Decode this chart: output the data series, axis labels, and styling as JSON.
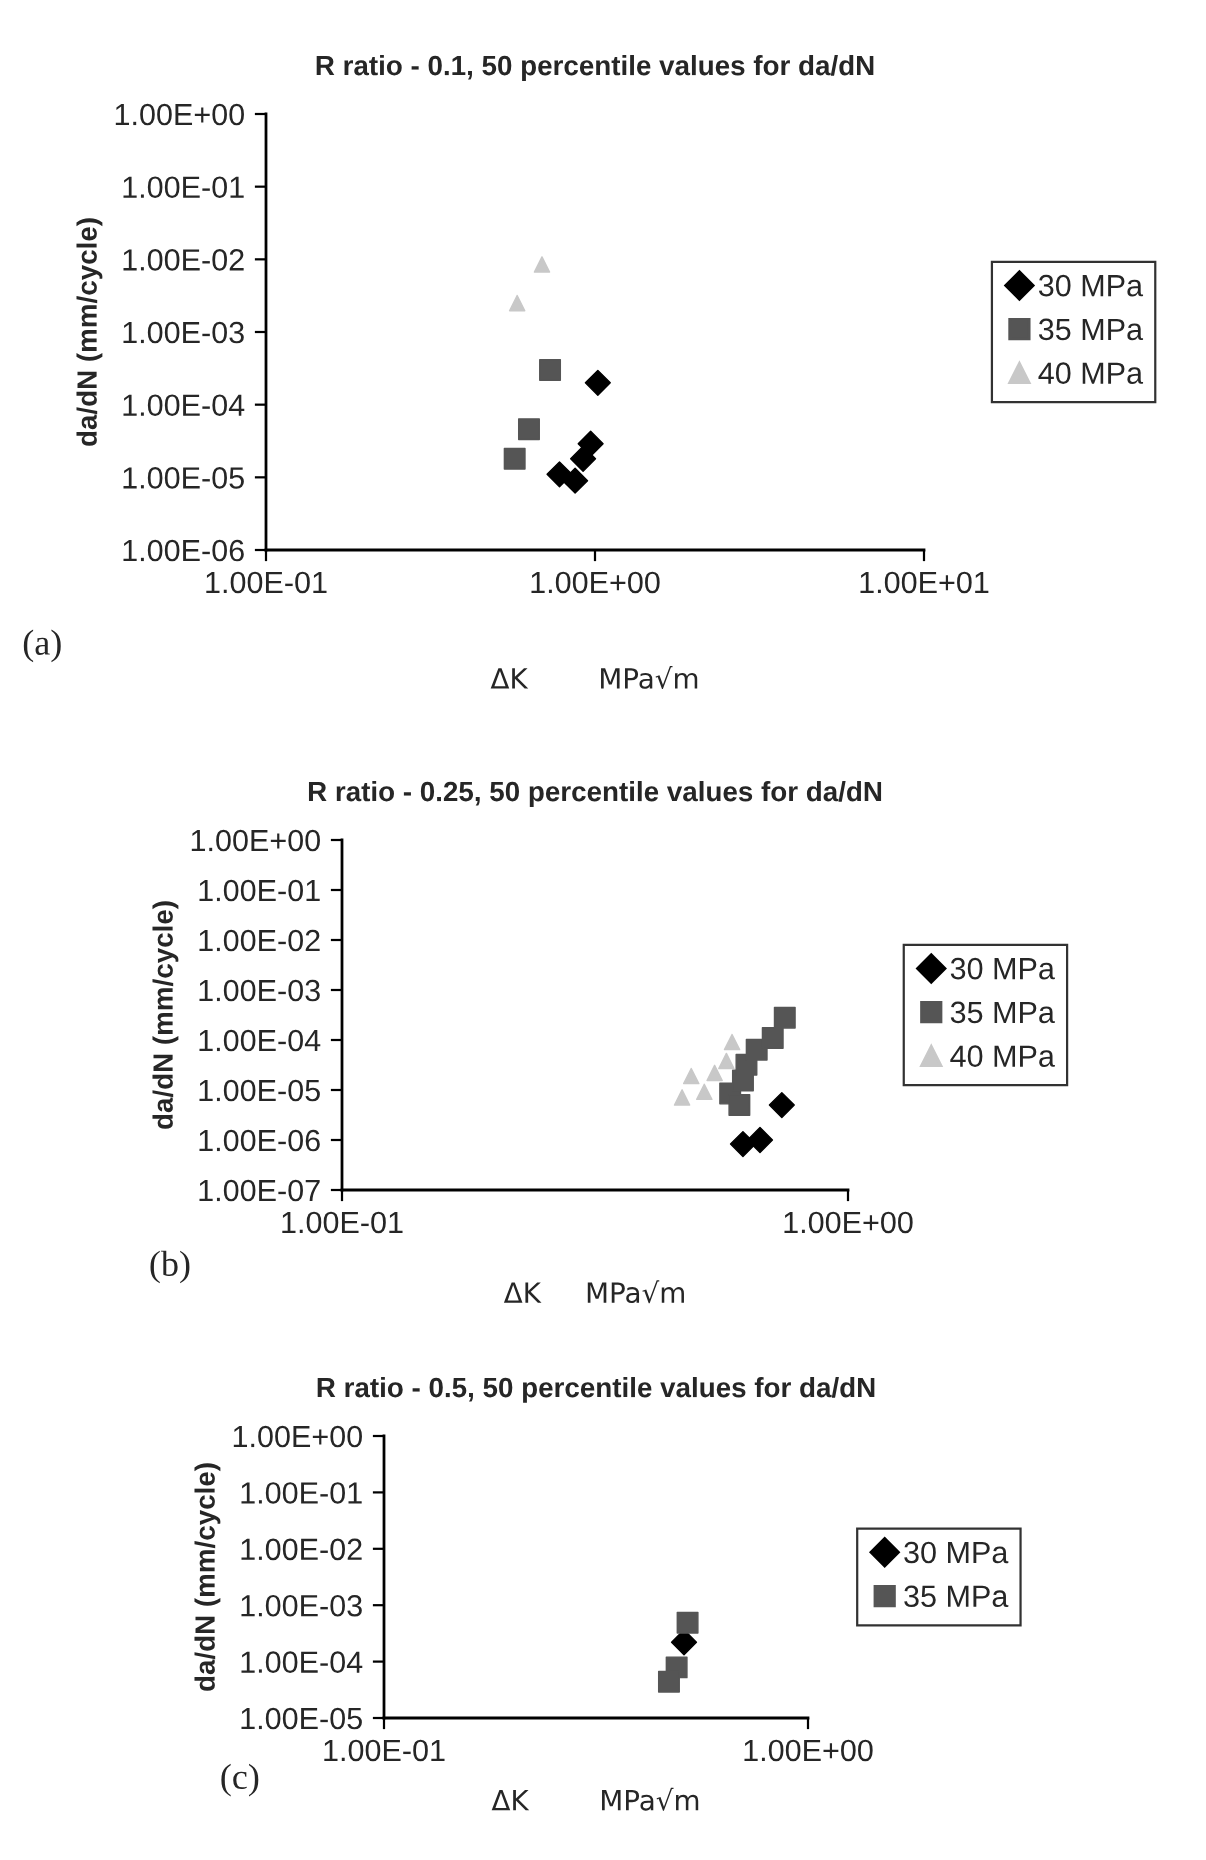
{
  "chart_data": [
    {
      "type": "scatter",
      "title": "R ratio - 0.1, 50 percentile values for da/dN",
      "xlabel": "ΔK        MPa√m",
      "ylabel": "da/dN (mm/cycle)",
      "annotations": [
        "(a)"
      ],
      "log": "xy",
      "legend": "right",
      "grid": false,
      "xlim": [
        0.1,
        10
      ],
      "xticks": [
        {
          "value": 0.1,
          "label": "1.00E-01"
        },
        {
          "value": 1,
          "label": "1.00E+00"
        },
        {
          "value": 10,
          "label": "1.00E+01"
        }
      ],
      "ylim": [
        1e-06,
        1
      ],
      "yticks": [
        {
          "value": 1e-06,
          "label": "1.00E-06"
        },
        {
          "value": 1e-05,
          "label": "1.00E-05"
        },
        {
          "value": 0.0001,
          "label": "1.00E-04"
        },
        {
          "value": 0.001,
          "label": "1.00E-03"
        },
        {
          "value": 0.01,
          "label": "1.00E-02"
        },
        {
          "value": 0.1,
          "label": "1.00E-01"
        },
        {
          "value": 1,
          "label": "1.00E+00"
        }
      ],
      "series": [
        {
          "name": "30 MPa",
          "color": "#000000",
          "marker": "diamond",
          "x": [
            1.02,
            0.97,
            0.92,
            0.78,
            0.87
          ],
          "values": [
            0.0002,
            2.9e-05,
            1.8e-05,
            1.1e-05,
            9e-06
          ]
        },
        {
          "name": "35 MPa",
          "color": "#555555",
          "marker": "square",
          "x": [
            0.73,
            0.63,
            0.57
          ],
          "values": [
            0.0003,
            4.6e-05,
            1.8e-05
          ]
        },
        {
          "name": "40 MPa",
          "color": "#c8c8c8",
          "marker": "triangle",
          "x": [
            0.69,
            0.58
          ],
          "values": [
            0.0085,
            0.0025
          ]
        }
      ]
    },
    {
      "type": "scatter",
      "title": "R ratio - 0.25, 50 percentile values for da/dN",
      "xlabel": "ΔK     MPa√m",
      "ylabel": "da/dN (mm/cycle)",
      "annotations": [
        "(b)"
      ],
      "log": "xy",
      "legend": "right",
      "grid": false,
      "xlim": [
        0.1,
        1
      ],
      "xticks": [
        {
          "value": 0.1,
          "label": "1.00E-01"
        },
        {
          "value": 1,
          "label": "1.00E+00"
        }
      ],
      "ylim": [
        1e-07,
        1
      ],
      "yticks": [
        {
          "value": 1e-07,
          "label": "1.00E-07"
        },
        {
          "value": 1e-06,
          "label": "1.00E-06"
        },
        {
          "value": 1e-05,
          "label": "1.00E-05"
        },
        {
          "value": 0.0001,
          "label": "1.00E-04"
        },
        {
          "value": 0.001,
          "label": "1.00E-03"
        },
        {
          "value": 0.01,
          "label": "1.00E-02"
        },
        {
          "value": 0.1,
          "label": "1.00E-01"
        },
        {
          "value": 1,
          "label": "1.00E+00"
        }
      ],
      "series": [
        {
          "name": "30 MPa",
          "color": "#000000",
          "marker": "diamond",
          "x": [
            0.62,
            0.67,
            0.74
          ],
          "values": [
            8.3e-07,
            1e-06,
            5e-06
          ]
        },
        {
          "name": "35 MPa",
          "color": "#555555",
          "marker": "square",
          "x": [
            0.585,
            0.61,
            0.62,
            0.63,
            0.66,
            0.71,
            0.75
          ],
          "values": [
            8.5e-06,
            5e-06,
            1.55e-05,
            3.2e-05,
            6.4e-05,
            0.00011,
            0.00028
          ]
        },
        {
          "name": "40 MPa",
          "color": "#c8c8c8",
          "marker": "triangle",
          "x": [
            0.47,
            0.49,
            0.52,
            0.545,
            0.575,
            0.59
          ],
          "values": [
            7.1e-06,
            1.9e-05,
            9.2e-06,
            2.2e-05,
            3.8e-05,
            9.1e-05
          ]
        }
      ]
    },
    {
      "type": "scatter",
      "title": "R ratio - 0.5, 50 percentile values for da/dN",
      "xlabel": "ΔK        MPa√m",
      "ylabel": "da/dN (mm/cycle)",
      "annotations": [
        "(c)"
      ],
      "log": "xy",
      "legend": "right",
      "grid": false,
      "xlim": [
        0.1,
        1
      ],
      "xticks": [
        {
          "value": 0.1,
          "label": "1.00E-01"
        },
        {
          "value": 1,
          "label": "1.00E+00"
        }
      ],
      "ylim": [
        1e-05,
        1
      ],
      "yticks": [
        {
          "value": 1e-05,
          "label": "1.00E-05"
        },
        {
          "value": 0.0001,
          "label": "1.00E-04"
        },
        {
          "value": 0.001,
          "label": "1.00E-03"
        },
        {
          "value": 0.01,
          "label": "1.00E-02"
        },
        {
          "value": 0.1,
          "label": "1.00E-01"
        },
        {
          "value": 1,
          "label": "1.00E+00"
        }
      ],
      "series": [
        {
          "name": "30 MPa",
          "color": "#000000",
          "marker": "diamond",
          "x": [
            0.51
          ],
          "values": [
            0.00022
          ]
        },
        {
          "name": "35 MPa",
          "color": "#555555",
          "marker": "square",
          "x": [
            0.52,
            0.49,
            0.47
          ],
          "values": [
            0.00049,
            7.9e-05,
            4.4e-05
          ]
        }
      ]
    }
  ]
}
